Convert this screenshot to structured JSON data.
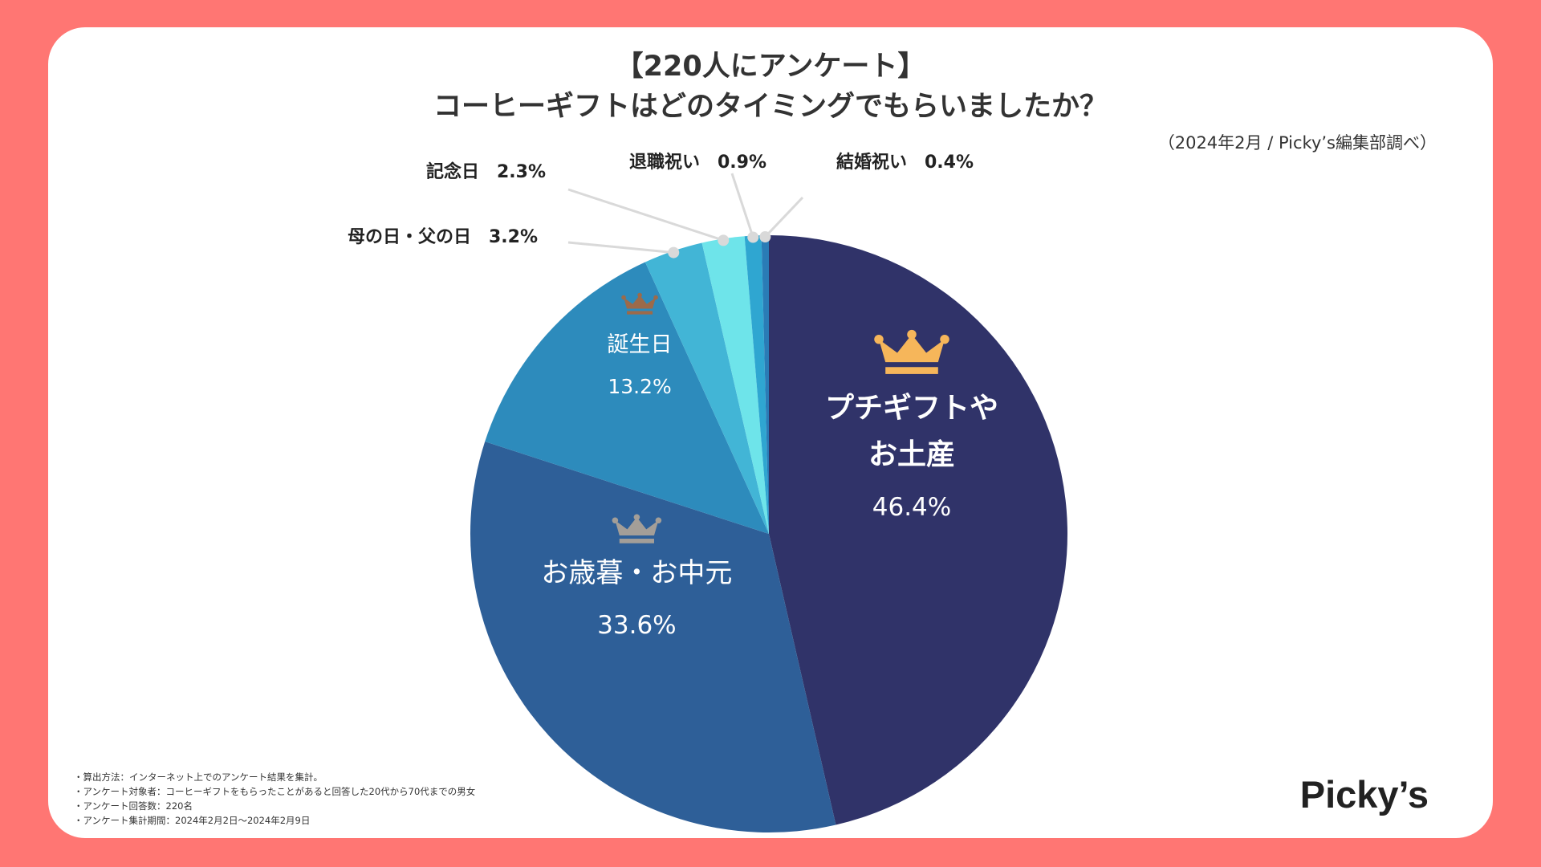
{
  "header": {
    "title_line1": "【220人にアンケート】",
    "title_line2": "コーヒーギフトはどのタイミングでもらいましたか？",
    "source": "（2024年2月 / Picky’s編集部調べ）"
  },
  "chart_data": {
    "type": "pie",
    "title": "コーヒーギフトはどのタイミングでもらいましたか？",
    "slices": [
      {
        "label_lines": [
          "プチギフトや",
          "お土産"
        ],
        "value": 46.4,
        "value_text": "46.4%",
        "color": "#303369",
        "rank": 1,
        "label_position": "inside"
      },
      {
        "label_lines": [
          "お歳暮・お中元"
        ],
        "value": 33.6,
        "value_text": "33.6%",
        "color": "#2E5F98",
        "rank": 2,
        "label_position": "inside"
      },
      {
        "label_lines": [
          "誕生日"
        ],
        "value": 13.2,
        "value_text": "13.2%",
        "color": "#2D8BBC",
        "rank": 3,
        "label_position": "inside"
      },
      {
        "label_lines": [
          "母の日・父の日"
        ],
        "value": 3.2,
        "value_text": "3.2%",
        "color": "#42B5D6",
        "label_position": "outside",
        "callout": "母の日・父の日　3.2%"
      },
      {
        "label_lines": [
          "記念日"
        ],
        "value": 2.3,
        "value_text": "2.3%",
        "color": "#6EE4EA",
        "label_position": "outside",
        "callout": "記念日　2.3%"
      },
      {
        "label_lines": [
          "退職祝い"
        ],
        "value": 0.9,
        "value_text": "0.9%",
        "color": "#2FA6D1",
        "label_position": "outside",
        "callout": "退職祝い　0.9%"
      },
      {
        "label_lines": [
          "結婚祝い"
        ],
        "value": 0.4,
        "value_text": "0.4%",
        "color": "#2A7CB6",
        "label_position": "outside",
        "callout": "結婚祝い　0.4%"
      }
    ],
    "crown_colors": {
      "1": "#F6B65A",
      "2": "#A39E98",
      "3": "#9C6A4A"
    },
    "label_color": "#ffffff",
    "leader_color": "#d9d9d9"
  },
  "notes": [
    "・算出方法：インターネット上でのアンケート結果を集計。",
    "・アンケート対象者：コーヒーギフトをもらったことがあると回答した20代から70代までの男女",
    "・アンケート回答数：220名",
    "・アンケート集計期間：2024年2月2日〜2024年2月9日"
  ],
  "brand": {
    "logo_text": "Picky’s"
  }
}
